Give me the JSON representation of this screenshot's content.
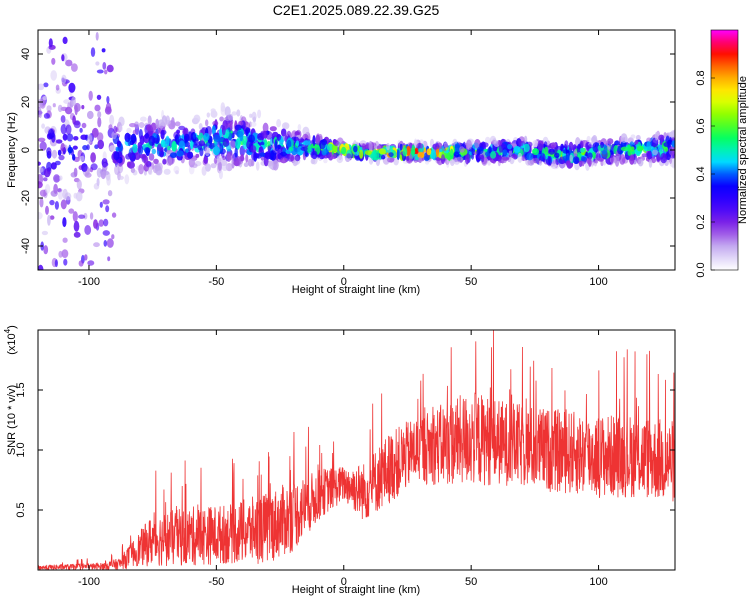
{
  "chart_data": [
    {
      "type": "heatmap",
      "title": "C2E1.2025.089.22.39.G25",
      "xlabel": "Height of straight line (km)",
      "ylabel": "Frequency (Hz)",
      "xlim": [
        -120,
        130
      ],
      "ylim": [
        -50,
        50
      ],
      "xticks": [
        -100,
        -50,
        0,
        50,
        100
      ],
      "yticks": [
        -40,
        -20,
        0,
        20,
        40
      ],
      "colorbar": {
        "label": "Normalized spectral amplitude",
        "range": [
          0.0,
          1.0
        ],
        "ticks": [
          0.0,
          0.2,
          0.4,
          0.6,
          0.8
        ],
        "tick_labels": [
          "0.0",
          "0.2",
          "0.4",
          "0.6",
          "0.8"
        ],
        "colormap": [
          "#ffffff",
          "#c9b6f2",
          "#8a2be2",
          "#3a00ff",
          "#0000ff",
          "#00e5ff",
          "#00ff66",
          "#7fff00",
          "#ffff00",
          "#ff9900",
          "#ff0000",
          "#ff00ff"
        ]
      },
      "band": [
        {
          "x": -120,
          "center": 2,
          "width": 30,
          "peak": 0.35
        },
        {
          "x": -95,
          "center": 1,
          "width": 16,
          "peak": 0.35
        },
        {
          "x": -85,
          "center": 1,
          "width": 12,
          "peak": 0.45
        },
        {
          "x": -60,
          "center": 3,
          "width": 10,
          "peak": 0.5
        },
        {
          "x": -45,
          "center": 4,
          "width": 12,
          "peak": 0.55
        },
        {
          "x": -25,
          "center": 2,
          "width": 9,
          "peak": 0.5
        },
        {
          "x": -10,
          "center": 1,
          "width": 5,
          "peak": 0.55
        },
        {
          "x": 0,
          "center": 0,
          "width": 3,
          "peak": 0.85
        },
        {
          "x": 10,
          "center": -1,
          "width": 3,
          "peak": 0.7
        },
        {
          "x": 30,
          "center": -1,
          "width": 3,
          "peak": 0.95
        },
        {
          "x": 50,
          "center": -1,
          "width": 4,
          "peak": 0.6
        },
        {
          "x": 70,
          "center": 0,
          "width": 5,
          "peak": 0.55
        },
        {
          "x": 85,
          "center": -2,
          "width": 5,
          "peak": 0.6
        },
        {
          "x": 110,
          "center": 0,
          "width": 5,
          "peak": 0.6
        },
        {
          "x": 130,
          "center": 1,
          "width": 6,
          "peak": 0.55
        }
      ]
    },
    {
      "type": "line",
      "xlabel": "Height of straight line (km)",
      "ylabel": "SNR (10 * v/v)",
      "scale_note": "(x10",
      "scale_exp": "4",
      "xlim": [
        -120,
        130
      ],
      "ylim": [
        0,
        2.0
      ],
      "xticks": [
        -100,
        -50,
        0,
        50,
        100
      ],
      "yticks": [
        0.5,
        1.0,
        1.5
      ],
      "ytick_labels": [
        "0.5",
        "1.0",
        "1.5"
      ],
      "color": "#ee3333",
      "envelope": [
        {
          "x": -120,
          "mean": 0.02,
          "spread": 0.02
        },
        {
          "x": -95,
          "mean": 0.03,
          "spread": 0.03
        },
        {
          "x": -88,
          "mean": 0.05,
          "spread": 0.05
        },
        {
          "x": -82,
          "mean": 0.15,
          "spread": 0.12
        },
        {
          "x": -75,
          "mean": 0.25,
          "spread": 0.22
        },
        {
          "x": -60,
          "mean": 0.28,
          "spread": 0.25
        },
        {
          "x": -45,
          "mean": 0.3,
          "spread": 0.25
        },
        {
          "x": -30,
          "mean": 0.35,
          "spread": 0.3
        },
        {
          "x": -20,
          "mean": 0.45,
          "spread": 0.3
        },
        {
          "x": -8,
          "mean": 0.65,
          "spread": 0.2
        },
        {
          "x": 0,
          "mean": 0.72,
          "spread": 0.15
        },
        {
          "x": 8,
          "mean": 0.65,
          "spread": 0.25
        },
        {
          "x": 18,
          "mean": 0.85,
          "spread": 0.3
        },
        {
          "x": 28,
          "mean": 1.0,
          "spread": 0.28
        },
        {
          "x": 40,
          "mean": 1.05,
          "spread": 0.35
        },
        {
          "x": 50,
          "mean": 1.1,
          "spread": 0.4
        },
        {
          "x": 65,
          "mean": 1.05,
          "spread": 0.35
        },
        {
          "x": 80,
          "mean": 1.0,
          "spread": 0.35
        },
        {
          "x": 100,
          "mean": 0.95,
          "spread": 0.35
        },
        {
          "x": 115,
          "mean": 0.95,
          "spread": 0.35
        },
        {
          "x": 130,
          "mean": 0.9,
          "spread": 0.35
        }
      ]
    }
  ]
}
